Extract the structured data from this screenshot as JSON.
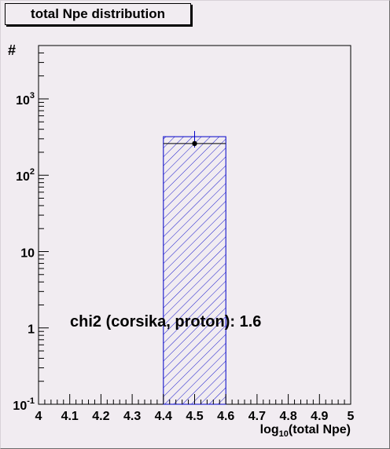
{
  "chart_data": {
    "type": "bar",
    "title": "total Npe distribution",
    "xlabel": "log10(total Npe)",
    "ylabel": "#",
    "xlim": [
      4,
      5
    ],
    "ylim": [
      0.1,
      5000
    ],
    "y_scale": "log",
    "x_ticks": [
      "4",
      "4.1",
      "4.2",
      "4.3",
      "4.4",
      "4.5",
      "4.6",
      "4.7",
      "4.8",
      "4.9",
      "5"
    ],
    "y_ticks": [
      {
        "base": "10",
        "exp": "-1",
        "value": 0.1
      },
      {
        "base": "1",
        "exp": "",
        "value": 1
      },
      {
        "base": "10",
        "exp": "",
        "value": 10
      },
      {
        "base": "10",
        "exp": "2",
        "value": 100
      },
      {
        "base": "10",
        "exp": "3",
        "value": 1000
      }
    ],
    "series": [
      {
        "kind": "histogram",
        "bins": [
          {
            "x_low": 4.4,
            "x_high": 4.6,
            "value": 320
          }
        ],
        "fill": "hatched",
        "color": "#0000c8"
      },
      {
        "kind": "points",
        "points": [
          {
            "x": 4.5,
            "y": 260,
            "y_err_high": 380,
            "y_err_low": 230
          }
        ],
        "color": "#000000",
        "error_color": "#0000c8"
      }
    ],
    "annotation": "chi2 (corsika, proton): 1.6",
    "grid": false
  },
  "colors": {
    "background": "#f1ecf1",
    "histogram": "#0000c8",
    "points": "#000000"
  }
}
